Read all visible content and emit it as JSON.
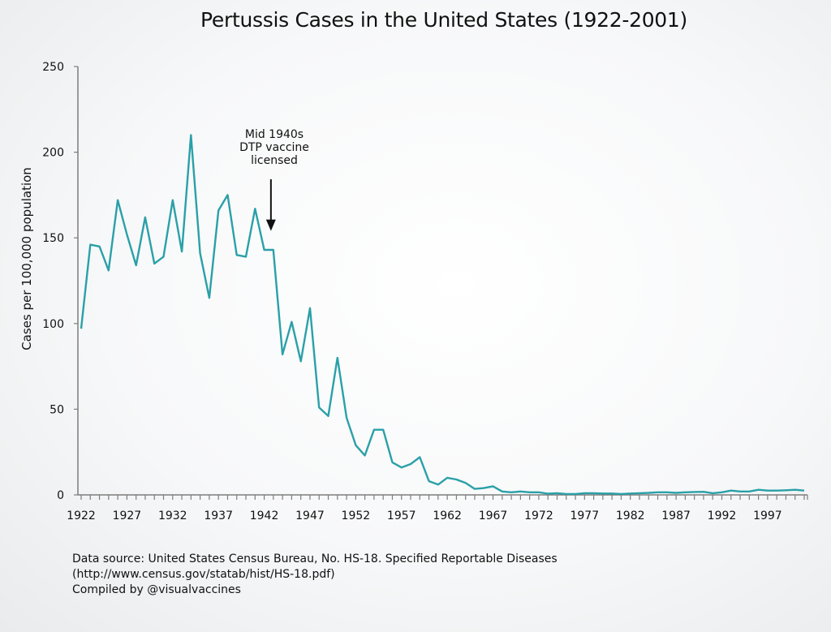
{
  "chart_data": {
    "type": "line",
    "title": "Pertussis Cases in the United States (1922-2001)",
    "xlabel": "",
    "ylabel": "Cases per 100,000 population",
    "ylim": [
      0,
      250
    ],
    "xlim": [
      1922,
      2001
    ],
    "yticks": [
      0,
      50,
      100,
      150,
      200,
      250
    ],
    "xticks": [
      1922,
      1927,
      1932,
      1937,
      1942,
      1947,
      1952,
      1957,
      1962,
      1967,
      1972,
      1977,
      1982,
      1987,
      1992,
      1997
    ],
    "grid": false,
    "line_color": "#2aa0a8",
    "annotation": {
      "lines": [
        "Mid 1940s",
        "DTP vaccine",
        "licensed"
      ],
      "x": 1943,
      "arrow_to_y": 155
    },
    "series": [
      {
        "name": "Pertussis cases per 100,000",
        "x": [
          1922,
          1923,
          1924,
          1925,
          1926,
          1927,
          1928,
          1929,
          1930,
          1931,
          1932,
          1933,
          1934,
          1935,
          1936,
          1937,
          1938,
          1939,
          1940,
          1941,
          1942,
          1943,
          1944,
          1945,
          1946,
          1947,
          1948,
          1949,
          1950,
          1951,
          1952,
          1953,
          1954,
          1955,
          1956,
          1957,
          1958,
          1959,
          1960,
          1961,
          1962,
          1963,
          1964,
          1965,
          1966,
          1967,
          1968,
          1969,
          1970,
          1971,
          1972,
          1973,
          1974,
          1975,
          1976,
          1977,
          1978,
          1979,
          1980,
          1981,
          1982,
          1983,
          1984,
          1985,
          1986,
          1987,
          1988,
          1989,
          1990,
          1991,
          1992,
          1993,
          1994,
          1995,
          1996,
          1997,
          1998,
          1999,
          2000,
          2001
        ],
        "values": [
          97,
          146,
          145,
          131,
          172,
          152,
          134,
          162,
          135,
          139,
          172,
          142,
          210,
          141,
          115,
          166,
          175,
          140,
          139,
          167,
          143,
          143,
          82,
          101,
          78,
          109,
          51,
          46,
          80,
          45,
          29,
          23,
          38,
          38,
          19,
          16,
          18,
          22,
          8,
          6,
          10,
          9,
          7,
          3.5,
          4,
          5,
          2,
          1.5,
          2,
          1.5,
          1.5,
          0.7,
          1,
          0.5,
          0.5,
          1,
          1,
          0.8,
          0.8,
          0.5,
          0.8,
          1,
          1.2,
          1.5,
          1.5,
          1.2,
          1.5,
          1.7,
          1.8,
          1,
          1.5,
          2.5,
          2,
          2,
          3,
          2.5,
          2.5,
          2.7,
          3,
          2.5
        ]
      }
    ]
  },
  "footer": {
    "line1": "Data source: United States Census Bureau, No. HS-18. Specified Reportable Diseases",
    "line2": "(http://www.census.gov/statab/hist/HS-18.pdf)",
    "line3": "Compiled by @visualvaccines"
  }
}
